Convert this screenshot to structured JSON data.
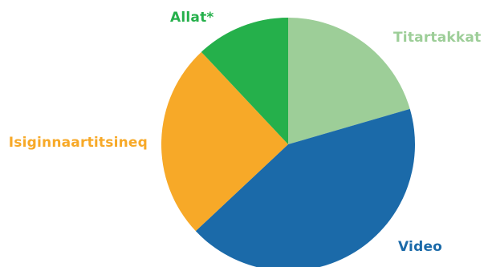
{
  "chart_data": {
    "type": "pie",
    "start_angle_deg": 0,
    "direction": "clockwise",
    "slices": [
      {
        "label": "Titartakkat",
        "value": 20.5,
        "color": "#9dce98"
      },
      {
        "label": "Video",
        "value": 42.5,
        "color": "#1b6aa9"
      },
      {
        "label": "Isiginnaartitsineq",
        "value": 25,
        "color": "#f7a928"
      },
      {
        "label": "Allat*",
        "value": 12,
        "color": "#25b04b"
      }
    ]
  }
}
